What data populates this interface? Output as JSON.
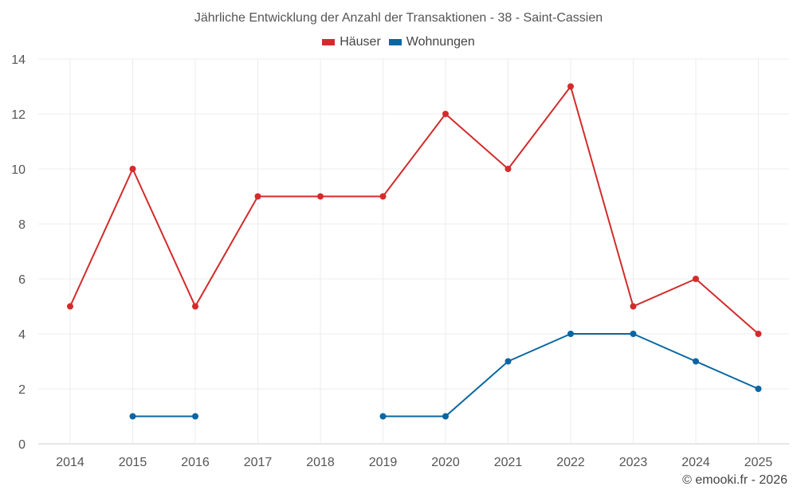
{
  "chart_data": {
    "type": "line",
    "title": "Jährliche Entwicklung der Anzahl der Transaktionen - 38 - Saint-Cassien",
    "xlabel": "",
    "ylabel": "",
    "categories": [
      "2014",
      "2015",
      "2016",
      "2017",
      "2018",
      "2019",
      "2020",
      "2021",
      "2022",
      "2023",
      "2024",
      "2025"
    ],
    "ylim": [
      0,
      14
    ],
    "yticks": [
      0,
      2,
      4,
      6,
      8,
      10,
      12,
      14
    ],
    "grid": true,
    "legend_position": "top-center",
    "series": [
      {
        "name": "Häuser",
        "color": "#d32b2b",
        "values": [
          5,
          10,
          5,
          9,
          9,
          9,
          12,
          10,
          13,
          5,
          6,
          4
        ]
      },
      {
        "name": "Wohnungen",
        "color": "#0866a3",
        "values": [
          null,
          1,
          1,
          null,
          null,
          1,
          1,
          3,
          4,
          4,
          3,
          2
        ]
      }
    ]
  },
  "footer": {
    "credit": "© emooki.fr - 2026"
  }
}
